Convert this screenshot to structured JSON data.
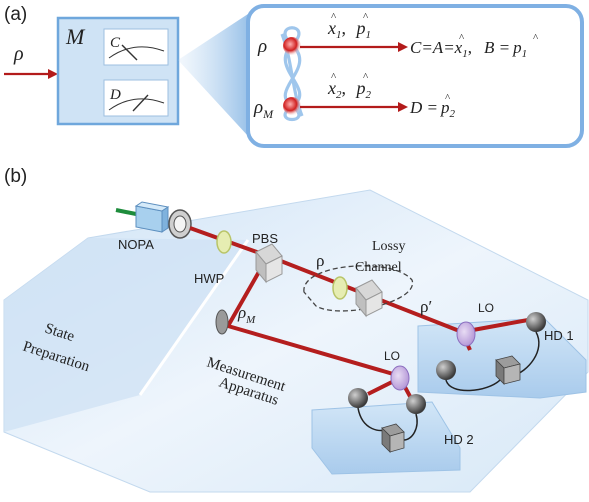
{
  "panel_a": {
    "panel_label": "(a)",
    "input_label": "ρ",
    "box_label": "M",
    "meter_c": "C",
    "meter_d": "D",
    "state_top": "ρ",
    "state_bottom": "ρ",
    "state_bottom_sub": "M",
    "quad_top_x": "x",
    "quad_top_x_sub": "1",
    "quad_top_p": "p",
    "quad_top_p_sub": "1",
    "quad_bottom_x": "x",
    "quad_bottom_x_sub": "2",
    "quad_bottom_p": "p",
    "quad_bottom_p_sub": "2",
    "result_top_ca": "C=A=",
    "result_top_x": "x",
    "result_top_x_sub": "1",
    "result_top_b": "B =",
    "result_top_p": "p",
    "result_top_p_sub": "1",
    "result_bottom_d": "D =",
    "result_bottom_p": "p",
    "result_bottom_p_sub": "2",
    "colors": {
      "beam": "#b31b1b",
      "box": "#cfe3f5",
      "accent": "#6fa7dc"
    }
  },
  "panel_b": {
    "panel_label": "(b)",
    "nopa": "NOPA",
    "hwp": "HWP",
    "pbs": "PBS",
    "rho": "ρ",
    "rho_prime": "ρ′",
    "rho_m": "ρ",
    "rho_m_sub": "M",
    "lossy_line1": "Lossy",
    "lossy_line2": "Channel",
    "lo_top": "LO",
    "lo_bottom": "LO",
    "hd1": "HD 1",
    "hd2": "HD 2",
    "state_line1": "State",
    "state_line2": "Preparation",
    "meas_line1": "Measurement",
    "meas_line2": "Apparatus",
    "colors": {
      "beam": "#b41e1e",
      "table": "#dcebf8",
      "fiber": "#1e8c3c"
    }
  }
}
